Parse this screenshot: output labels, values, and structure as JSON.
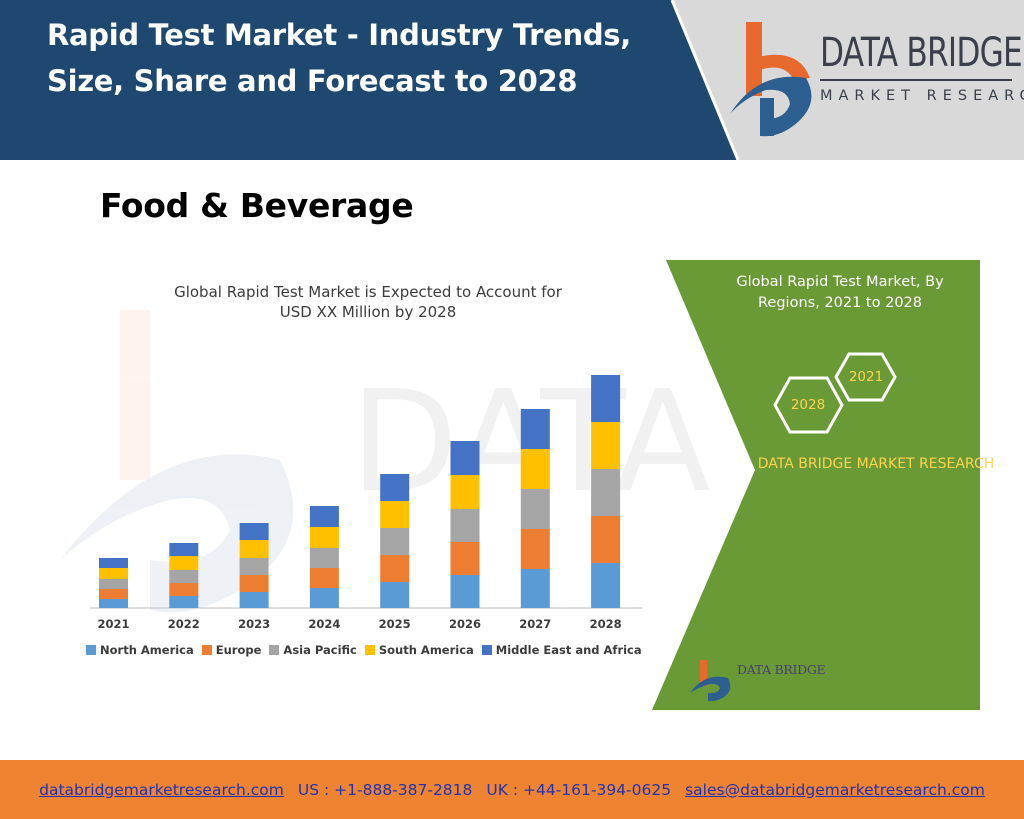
{
  "header": {
    "title": "Rapid Test Market - Industry Trends, Size, Share and Forecast to 2028",
    "logo_name": "DATA BRIDGE",
    "logo_sub": "MARKET RESEARCH",
    "band_color": "#1e4870",
    "logo_orange": "#e8692d",
    "logo_blue": "#2c5e8f"
  },
  "section": {
    "title": "Food & Beverage"
  },
  "infographic": {
    "panel_title": "Global Rapid Test Market, By Regions, 2021 to 2028",
    "hex_left": "2028",
    "hex_right": "2021",
    "panel_brand": "DATA BRIDGE MARKET RESEARCH",
    "small_logo": "DATA BRIDGE",
    "panel_color": "#6a9a35"
  },
  "chart_data": {
    "type": "bar",
    "stacked": true,
    "title": "Global Rapid Test Market is Expected to Account for USD XX Million by 2028",
    "categories": [
      "2021",
      "2022",
      "2023",
      "2024",
      "2025",
      "2026",
      "2027",
      "2028"
    ],
    "series": [
      {
        "name": "North America",
        "color": "#5b9bd5",
        "values": [
          9,
          12,
          16,
          20,
          26,
          33,
          39,
          45
        ]
      },
      {
        "name": "Europe",
        "color": "#ed7d31",
        "values": [
          10,
          13,
          17,
          20,
          27,
          33,
          40,
          47
        ]
      },
      {
        "name": "Asia Pacific",
        "color": "#a5a5a5",
        "values": [
          10,
          13,
          17,
          20,
          27,
          33,
          40,
          47
        ]
      },
      {
        "name": "South America",
        "color": "#ffc000",
        "values": [
          11,
          14,
          18,
          21,
          27,
          34,
          40,
          47
        ]
      },
      {
        "name": "Middle East and Africa",
        "color": "#4472c4",
        "values": [
          10,
          13,
          17,
          21,
          27,
          34,
          40,
          47
        ]
      }
    ],
    "xlabel": "",
    "ylabel": "",
    "grid": false,
    "legend": "bottom"
  },
  "footer": {
    "website": "databridgemarketresearch.com",
    "us_phone": "US : +1-888-387-2818",
    "uk_phone": "UK : +44-161-394-0625",
    "email": "sales@databridgemarketresearch.com",
    "color": "#ee8432"
  }
}
